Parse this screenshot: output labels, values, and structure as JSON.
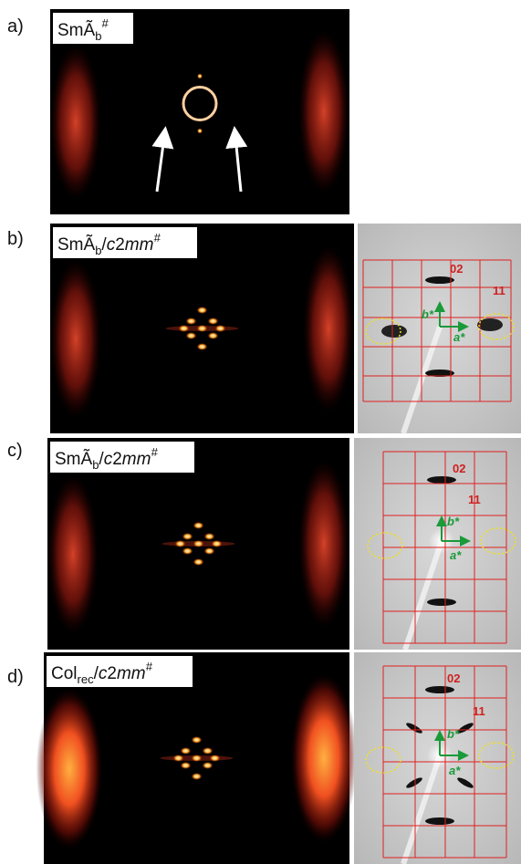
{
  "panels": [
    {
      "label": "a)",
      "title": [
        {
          "text": "SmÃ"
        },
        {
          "text": "b",
          "style": "sub"
        },
        {
          "text": "#",
          "style": "sup"
        }
      ]
    },
    {
      "label": "b)",
      "title": [
        {
          "text": "SmÃ"
        },
        {
          "text": "b",
          "style": "sub"
        },
        {
          "text": "/"
        },
        {
          "text": "c",
          "style": "italic"
        },
        {
          "text": "2"
        },
        {
          "text": "mm",
          "style": "italic"
        },
        {
          "text": "#",
          "style": "sup"
        }
      ],
      "indices": [
        "02",
        "11"
      ],
      "vectors": [
        "b*",
        "a*"
      ]
    },
    {
      "label": "c)",
      "title": [
        {
          "text": "SmÃ"
        },
        {
          "text": "b",
          "style": "sub"
        },
        {
          "text": "/"
        },
        {
          "text": "c",
          "style": "italic"
        },
        {
          "text": "2"
        },
        {
          "text": "mm",
          "style": "italic"
        },
        {
          "text": "#",
          "style": "sup"
        }
      ],
      "indices": [
        "02",
        "11"
      ],
      "vectors": [
        "b*",
        "a*"
      ]
    },
    {
      "label": "d)",
      "title": [
        {
          "text": "Col"
        },
        {
          "text": "rec",
          "style": "sub"
        },
        {
          "text": "/"
        },
        {
          "text": "c",
          "style": "italic"
        },
        {
          "text": "2"
        },
        {
          "text": "mm",
          "style": "italic"
        },
        {
          "text": "#",
          "style": "sup"
        }
      ],
      "indices": [
        "02",
        "11"
      ],
      "vectors": [
        "b*",
        "a*"
      ]
    }
  ]
}
